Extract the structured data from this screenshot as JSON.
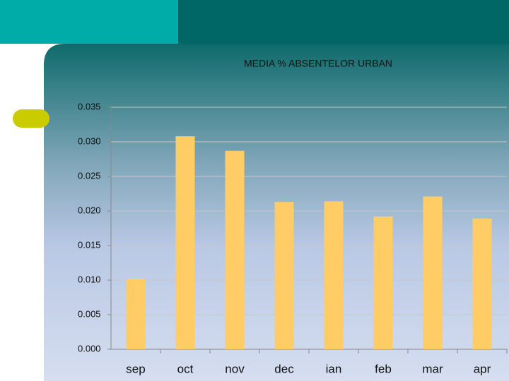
{
  "chart_data": {
    "type": "bar",
    "title": "MEDIA % ABSENTELOR URBAN",
    "categories": [
      "sep",
      "oct",
      "nov",
      "dec",
      "ian",
      "feb",
      "mar",
      "apr"
    ],
    "values": [
      0.0102,
      0.0308,
      0.0287,
      0.0213,
      0.0214,
      0.0192,
      0.0221,
      0.0189
    ],
    "color": "#ffcc66",
    "ylim": [
      0,
      0.035
    ],
    "yticks": [
      {
        "value": 0,
        "label": "0.000"
      },
      0.005,
      {
        "value": 0.01,
        "label": "0.010"
      },
      0.015,
      {
        "value": 0.02,
        "label": "0.020"
      },
      0.025,
      {
        "value": 0.03,
        "label": "0.030"
      },
      0.035
    ],
    "grid": true
  }
}
